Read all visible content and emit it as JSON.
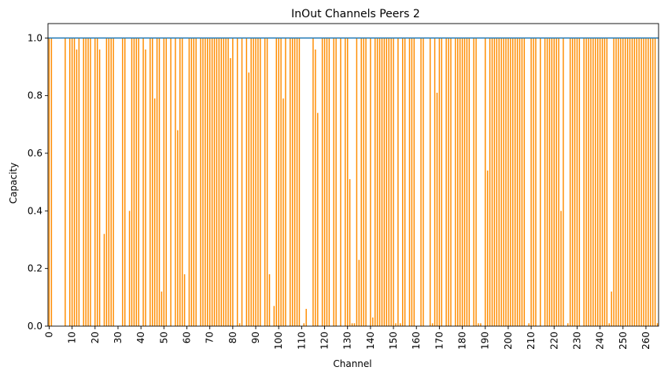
{
  "chart_data": {
    "type": "bar",
    "title": "InOut Channels Peers 2",
    "xlabel": "Channel",
    "ylabel": "Capacity",
    "xlim": [
      -0.5,
      265.5
    ],
    "ylim": [
      0,
      1.05
    ],
    "x_ticks": [
      0,
      10,
      20,
      30,
      40,
      50,
      60,
      70,
      80,
      90,
      100,
      110,
      120,
      130,
      140,
      150,
      160,
      170,
      180,
      190,
      200,
      210,
      220,
      230,
      240,
      250,
      260
    ],
    "y_ticks": [
      0.0,
      0.2,
      0.4,
      0.6,
      0.8,
      1.0
    ],
    "y_tick_labels": [
      "0.0",
      "0.2",
      "0.4",
      "0.6",
      "0.8",
      "1.0"
    ],
    "reference_line": 1.0,
    "colors": {
      "bars": "#ff8c00",
      "reference_line": "#1f77b4"
    },
    "values": [
      1,
      1,
      0,
      0,
      0,
      0,
      0,
      1,
      0,
      1,
      1,
      1,
      0.96,
      1,
      0,
      1,
      1,
      1,
      1,
      0,
      1,
      1,
      0.96,
      0,
      0.32,
      1,
      1,
      1,
      1,
      0,
      0,
      0,
      1,
      1,
      0,
      0.4,
      1,
      1,
      1,
      1,
      0,
      1,
      0.96,
      0,
      1,
      1,
      0.79,
      1,
      1,
      0.12,
      1,
      1,
      0,
      1,
      0,
      1,
      0.68,
      1,
      1,
      0.18,
      0,
      1,
      1,
      1,
      1,
      0,
      1,
      1,
      1,
      1,
      1,
      1,
      1,
      1,
      1,
      1,
      1,
      1,
      1,
      0.93,
      1,
      0,
      1,
      0.01,
      1,
      0,
      1,
      0.88,
      1,
      1,
      1,
      1,
      1,
      0,
      1,
      1,
      0.18,
      0,
      0.07,
      1,
      1,
      1,
      0.79,
      1,
      0,
      1,
      1,
      1,
      1,
      1,
      0,
      0.01,
      0.06,
      0,
      0,
      1,
      0.96,
      0.74,
      0,
      1,
      1,
      1,
      1,
      0,
      1,
      1,
      0,
      1,
      0,
      1,
      1,
      0.51,
      0.01,
      0.01,
      1,
      0.23,
      1,
      1,
      1,
      0,
      1,
      0.03,
      1,
      1,
      1,
      1,
      1,
      1,
      1,
      1,
      1,
      0.01,
      1,
      0.01,
      1,
      1,
      0,
      1,
      1,
      1,
      0,
      0,
      1,
      1,
      0,
      0,
      1,
      0.01,
      1,
      0.81,
      1,
      1,
      0,
      1,
      1,
      1,
      0,
      1,
      1,
      1,
      1,
      1,
      1,
      1,
      0,
      1,
      1,
      0.01,
      0.01,
      0,
      1,
      0.54,
      1,
      1,
      1,
      1,
      1,
      1,
      1,
      1,
      1,
      1,
      1,
      1,
      1,
      1,
      1,
      1,
      0,
      0.01,
      1,
      1,
      1,
      0,
      1,
      0,
      1,
      1,
      1,
      1,
      1,
      1,
      1,
      0.4,
      1,
      0,
      0.01,
      1,
      1,
      1,
      1,
      1,
      0,
      1,
      1,
      1,
      1,
      1,
      1,
      1,
      1,
      1,
      1,
      1,
      0.01,
      0.12,
      1,
      1,
      1,
      1,
      1,
      1,
      1,
      1,
      1,
      1,
      1,
      1,
      1,
      1,
      1,
      1,
      1,
      1,
      1,
      0.01
    ]
  }
}
